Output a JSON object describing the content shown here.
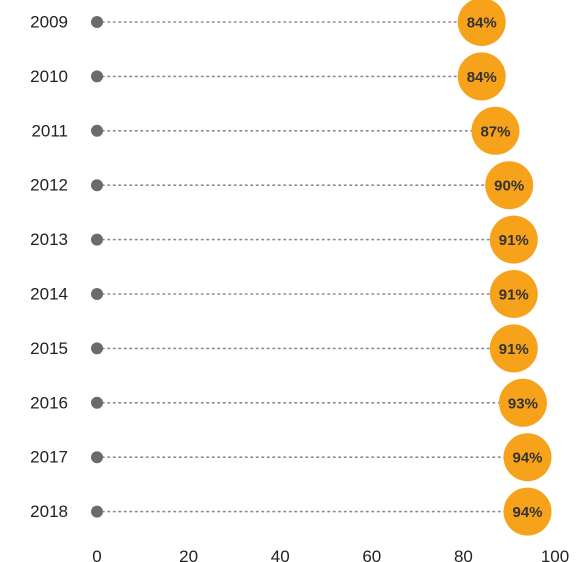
{
  "chart_data": {
    "type": "dot-range",
    "title": "",
    "xlabel": "",
    "ylabel": "",
    "categories": [
      "2009",
      "2010",
      "2011",
      "2012",
      "2013",
      "2014",
      "2015",
      "2016",
      "2017",
      "2018"
    ],
    "start_values": [
      0,
      0,
      0,
      0,
      0,
      0,
      0,
      0,
      0,
      0
    ],
    "values": [
      84,
      84,
      87,
      90,
      91,
      91,
      91,
      93,
      94,
      94
    ],
    "value_labels": [
      "84%",
      "84%",
      "87%",
      "90%",
      "91%",
      "91%",
      "91%",
      "93%",
      "94%",
      "94%"
    ],
    "x_ticks": [
      "0",
      "20",
      "40",
      "60",
      "80",
      "100"
    ],
    "xlim": [
      0,
      100
    ],
    "grid": false,
    "legend": "none",
    "colors": {
      "start_dot": "#6b6b6b",
      "connector": "#8a8a8a",
      "end_bubble": "#f7a21b",
      "label_text": "#333333"
    }
  }
}
